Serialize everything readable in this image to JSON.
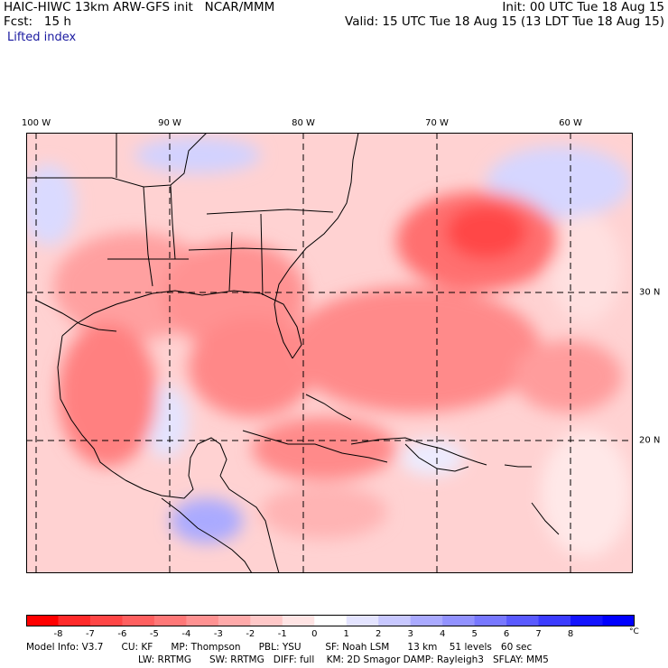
{
  "header": {
    "title": "HAIC-HIWC 13km ARW-GFS init   NCAR/MMM",
    "fcst": "Fcst:   15 h",
    "init": "Init: 00 UTC Tue 18 Aug 15",
    "valid": "Valid: 15 UTC Tue 18 Aug 15 (13 LDT Tue 18 Aug 15)",
    "field": "Lifted index"
  },
  "map": {
    "longitude_labels": [
      "100 W",
      "90 W",
      "80 W",
      "70 W",
      "60 W"
    ],
    "latitude_labels": [
      "30 N",
      "20 N"
    ]
  },
  "colorbar": {
    "unit": "°C",
    "labels": [
      "-8",
      "-7",
      "-6",
      "-5",
      "-4",
      "-3",
      "-2",
      "-1",
      "0",
      "1",
      "2",
      "3",
      "4",
      "5",
      "6",
      "7",
      "8"
    ],
    "colors": [
      "#ff0000",
      "#ff2a2a",
      "#ff4646",
      "#ff6060",
      "#ff7878",
      "#ff9292",
      "#ffaaaa",
      "#ffc8c8",
      "#ffe4e4",
      "#ffffff",
      "#e4e4ff",
      "#c8c8ff",
      "#aaaaff",
      "#9292ff",
      "#7878ff",
      "#5a5aff",
      "#3c3cff",
      "#1414ff",
      "#0000ff"
    ]
  },
  "footer": {
    "line1": "Model Info: V3.7      CU: KF      MP: Thompson      PBL: YSU        SF: Noah LSM      13 km    51 levels   60 sec",
    "line2": "LW: RRTMG      SW: RRTMG   DIFF: full    KM: 2D Smagor DAMP: Rayleigh3   SFLAY: MM5"
  }
}
